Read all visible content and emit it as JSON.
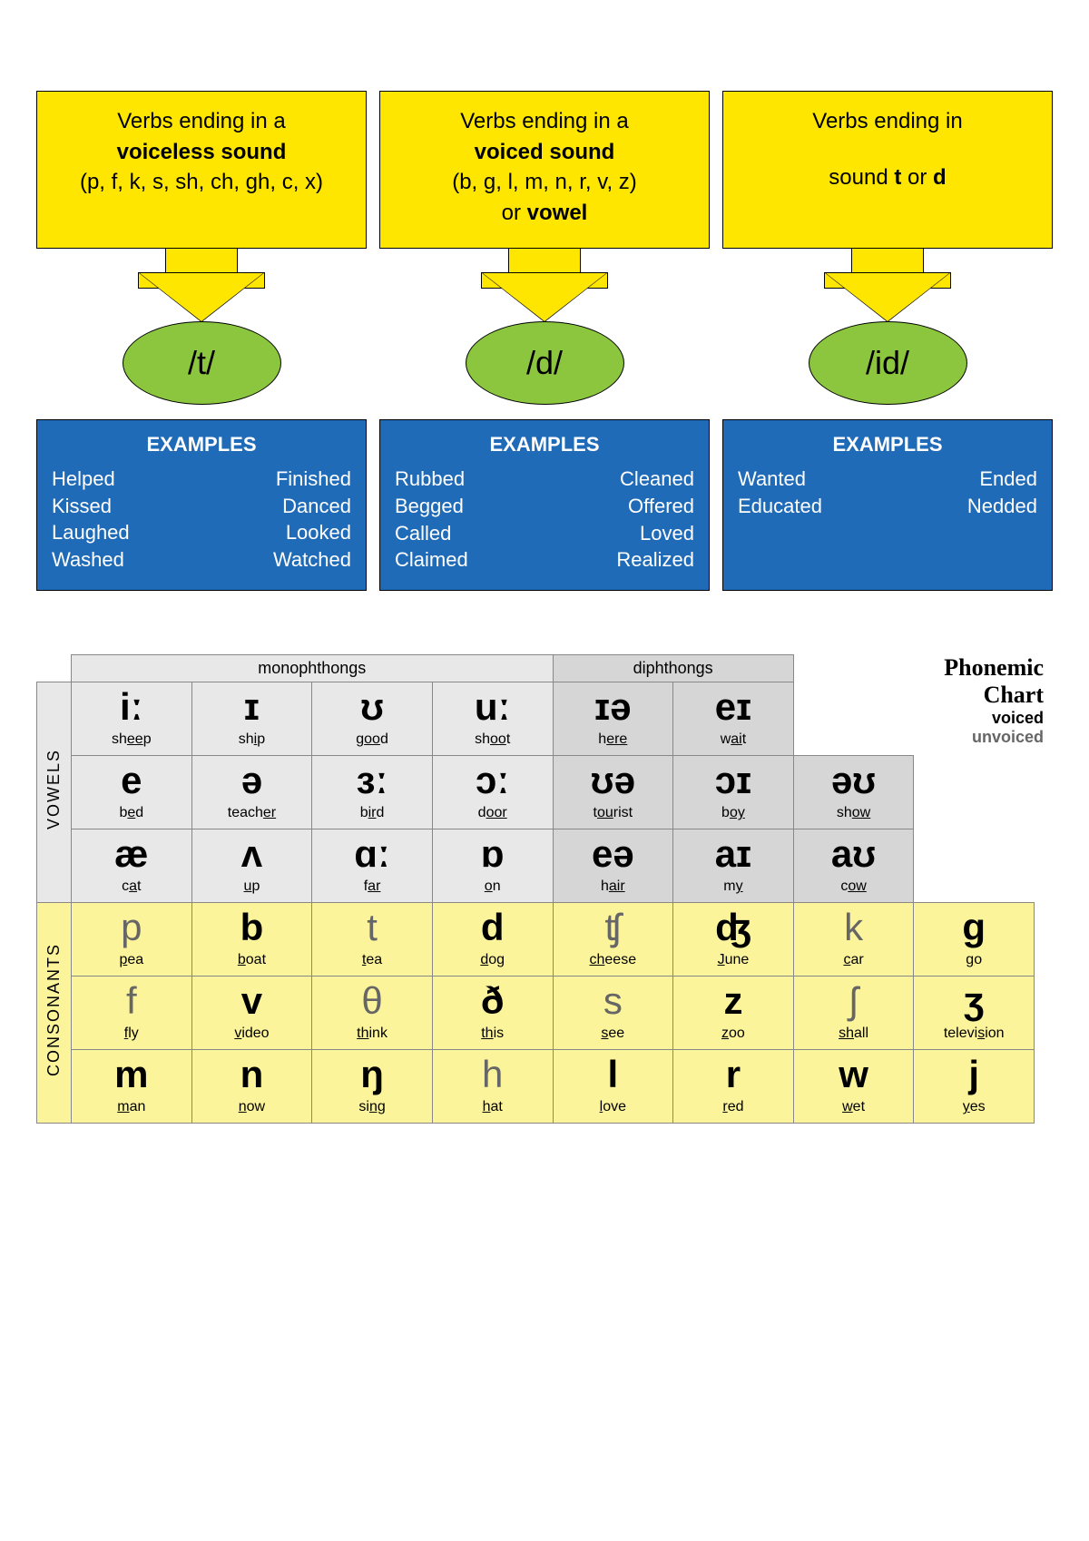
{
  "colors": {
    "rule_bg": "#ffe600",
    "ellipse_bg": "#8cc63f",
    "examples_bg": "#1f6bb8",
    "examples_text": "#ffffff",
    "vowels_bg": "#e8e8e8",
    "diphthong_bg": "#d6d6d6",
    "consonants_bg": "#fcf49a",
    "side_bg": "#e8e8e8",
    "voiced_color": "#000000",
    "unvoiced_color": "#666666"
  },
  "rules": [
    {
      "line1": "Verbs ending in a",
      "bold": "voiceless sound",
      "line3": "(p, f, k, s, sh, ch, gh, c, x)",
      "line4": "",
      "sound": "/t/",
      "examples_left": [
        "Helped",
        "Kissed",
        "Laughed",
        "Washed"
      ],
      "examples_right": [
        "Finished",
        "Danced",
        "Looked",
        "Watched"
      ]
    },
    {
      "line1": "Verbs ending in a",
      "bold": "voiced sound",
      "line3": "(b, g, l, m, n, r, v, z)",
      "line4_prefix": "or ",
      "line4_bold": "vowel",
      "sound": "/d/",
      "examples_left": [
        "Rubbed",
        "Begged",
        "Called",
        "Claimed"
      ],
      "examples_right": [
        "Cleaned",
        "Offered",
        "Loved",
        "Realized"
      ]
    },
    {
      "line1": "Verbs ending in",
      "bold": "",
      "line3_prefix": "sound ",
      "line3_bold1": "t",
      "line3_mid": " or ",
      "line3_bold2": "d",
      "sound": "/id/",
      "examples_left": [
        "Wanted",
        "Educated"
      ],
      "examples_right": [
        "Ended",
        "Nedded"
      ]
    }
  ],
  "examples_label": "EXAMPLES",
  "chart_title": {
    "l1": "Phonemic",
    "l2": "Chart",
    "l3": "voiced",
    "l4": "unvoiced"
  },
  "group_headers": {
    "mono": "monophthongs",
    "diph": "diphthongs"
  },
  "side_headers": {
    "vowels": "VOWELS",
    "consonants": "CONSONANTS"
  },
  "vowels_mono": [
    [
      {
        "sym": "iː",
        "w": "sh<u>ee</u>p",
        "v": 1
      },
      {
        "sym": "ɪ",
        "w": "sh<u>i</u>p",
        "v": 1
      },
      {
        "sym": "ʊ",
        "w": "g<u>oo</u>d",
        "v": 1
      },
      {
        "sym": "uː",
        "w": "sh<u>oo</u>t",
        "v": 1
      }
    ],
    [
      {
        "sym": "e",
        "w": "b<u>e</u>d",
        "v": 1
      },
      {
        "sym": "ə",
        "w": "teach<u>er</u>",
        "v": 1
      },
      {
        "sym": "ɜː",
        "w": "b<u>ir</u>d",
        "v": 1
      },
      {
        "sym": "ɔː",
        "w": "d<u>oor</u>",
        "v": 1
      }
    ],
    [
      {
        "sym": "æ",
        "w": "c<u>a</u>t",
        "v": 1
      },
      {
        "sym": "ʌ",
        "w": "<u>u</u>p",
        "v": 1
      },
      {
        "sym": "ɑː",
        "w": "f<u>ar</u>",
        "v": 1
      },
      {
        "sym": "ɒ",
        "w": "<u>o</u>n",
        "v": 1
      }
    ]
  ],
  "vowels_diph": [
    [
      {
        "sym": "ɪə",
        "w": "h<u>ere</u>",
        "v": 1
      },
      {
        "sym": "eɪ",
        "w": "w<u>ai</u>t",
        "v": 1
      },
      null,
      null
    ],
    [
      {
        "sym": "ʊə",
        "w": "t<u>ou</u>rist",
        "v": 1
      },
      {
        "sym": "ɔɪ",
        "w": "b<u>oy</u>",
        "v": 1
      },
      {
        "sym": "əʊ",
        "w": "sh<u>ow</u>",
        "v": 1
      },
      null
    ],
    [
      {
        "sym": "eə",
        "w": "h<u>air</u>",
        "v": 1
      },
      {
        "sym": "aɪ",
        "w": "m<u>y</u>",
        "v": 1
      },
      {
        "sym": "aʊ",
        "w": "c<u>ow</u>",
        "v": 1
      },
      null
    ]
  ],
  "consonants": [
    [
      {
        "sym": "p",
        "w": "<u>p</u>ea",
        "v": 0
      },
      {
        "sym": "b",
        "w": "<u>b</u>oat",
        "v": 1
      },
      {
        "sym": "t",
        "w": "<u>t</u>ea",
        "v": 0
      },
      {
        "sym": "d",
        "w": "<u>d</u>og",
        "v": 1
      },
      {
        "sym": "ʧ",
        "w": "<u>ch</u>eese",
        "v": 0
      },
      {
        "sym": "ʤ",
        "w": "<u>J</u>une",
        "v": 1
      },
      {
        "sym": "k",
        "w": "<u>c</u>ar",
        "v": 0
      },
      {
        "sym": "g",
        "w": "<u>g</u>o",
        "v": 1
      }
    ],
    [
      {
        "sym": "f",
        "w": "<u>f</u>ly",
        "v": 0
      },
      {
        "sym": "v",
        "w": "<u>v</u>ideo",
        "v": 1
      },
      {
        "sym": "θ",
        "w": "<u>th</u>ink",
        "v": 0
      },
      {
        "sym": "ð",
        "w": "<u>th</u>is",
        "v": 1
      },
      {
        "sym": "s",
        "w": "<u>s</u>ee",
        "v": 0
      },
      {
        "sym": "z",
        "w": "<u>z</u>oo",
        "v": 1
      },
      {
        "sym": "ʃ",
        "w": "<u>sh</u>all",
        "v": 0
      },
      {
        "sym": "ʒ",
        "w": "televi<u>s</u>ion",
        "v": 1
      }
    ],
    [
      {
        "sym": "m",
        "w": "<u>m</u>an",
        "v": 1
      },
      {
        "sym": "n",
        "w": "<u>n</u>ow",
        "v": 1
      },
      {
        "sym": "ŋ",
        "w": "si<u>ng</u>",
        "v": 1
      },
      {
        "sym": "h",
        "w": "<u>h</u>at",
        "v": 0
      },
      {
        "sym": "l",
        "w": "<u>l</u>ove",
        "v": 1
      },
      {
        "sym": "r",
        "w": "<u>r</u>ed",
        "v": 1
      },
      {
        "sym": "w",
        "w": "<u>w</u>et",
        "v": 1
      },
      {
        "sym": "j",
        "w": "<u>y</u>es",
        "v": 1
      }
    ]
  ]
}
